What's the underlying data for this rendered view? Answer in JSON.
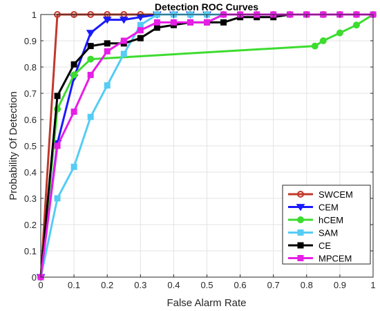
{
  "chart_data": {
    "type": "line",
    "title": "Detection ROC Curves",
    "xlabel": "False Alarm Rate",
    "ylabel": "Probability Of Detection",
    "xlim": [
      0,
      1
    ],
    "ylim": [
      0,
      1
    ],
    "xticks": [
      0,
      0.1,
      0.2,
      0.3,
      0.4,
      0.5,
      0.6,
      0.7,
      0.8,
      0.9,
      1
    ],
    "xtick_labels": [
      "0",
      "0.1",
      "0.2",
      "0.3",
      "0.4",
      "0.5",
      "0.6",
      "0.7",
      "0.8",
      "0.9",
      "1"
    ],
    "yticks": [
      0,
      0.1,
      0.2,
      0.3,
      0.4,
      0.5,
      0.6,
      0.7,
      0.8,
      0.9,
      1
    ],
    "ytick_labels": [
      "0",
      "0.1",
      "0.2",
      "0.3",
      "0.4",
      "0.5",
      "0.6",
      "0.7",
      "0.8",
      "0.9",
      "1"
    ],
    "grid": true,
    "legend_position": "bottom-right",
    "series": [
      {
        "name": "SWCEM",
        "color": "#c0392b",
        "marker": "circle-open",
        "x": [
          0,
          0.05,
          0.1,
          0.15,
          0.2,
          0.25,
          0.3,
          0.35,
          0.4,
          0.45,
          0.5,
          0.55,
          0.6,
          0.65,
          0.7,
          0.75,
          0.8,
          0.85,
          0.9,
          0.95,
          1
        ],
        "y": [
          0,
          1,
          1,
          1,
          1,
          1,
          1,
          1,
          1,
          1,
          1,
          1,
          1,
          1,
          1,
          1,
          1,
          1,
          1,
          1,
          1
        ]
      },
      {
        "name": "CEM",
        "color": "#1a1aff",
        "marker": "triangle-down",
        "x": [
          0,
          0.05,
          0.1,
          0.15,
          0.2,
          0.25,
          0.3,
          0.35,
          0.4,
          0.45,
          0.5
        ],
        "y": [
          0,
          0.51,
          0.76,
          0.93,
          0.98,
          0.98,
          0.99,
          1,
          1,
          1,
          1
        ]
      },
      {
        "name": "hCEM",
        "color": "#3ddc2f",
        "marker": "circle",
        "x": [
          0,
          0.05,
          0.1,
          0.15,
          0.825,
          0.85,
          0.9,
          0.95,
          1
        ],
        "y": [
          0,
          0.64,
          0.77,
          0.83,
          0.88,
          0.9,
          0.93,
          0.96,
          1
        ]
      },
      {
        "name": "SAM",
        "color": "#55ccf5",
        "marker": "square",
        "x": [
          0,
          0.05,
          0.1,
          0.15,
          0.2,
          0.25,
          0.3,
          0.35,
          0.4,
          0.45,
          0.5,
          0.55,
          0.6,
          0.65,
          0.7,
          0.75,
          0.8,
          0.85,
          0.9,
          0.95,
          1
        ],
        "y": [
          0,
          0.3,
          0.42,
          0.61,
          0.73,
          0.85,
          0.96,
          1,
          1,
          1,
          1,
          1,
          1,
          1,
          1,
          1,
          1,
          1,
          1,
          1,
          1
        ]
      },
      {
        "name": "CE",
        "color": "#000000",
        "marker": "square",
        "x": [
          0,
          0.05,
          0.1,
          0.15,
          0.2,
          0.25,
          0.3,
          0.35,
          0.4,
          0.45,
          0.5,
          0.55,
          0.6,
          0.65,
          0.7,
          0.75,
          0.8,
          0.85,
          0.9,
          0.95,
          1
        ],
        "y": [
          0,
          0.69,
          0.81,
          0.88,
          0.89,
          0.89,
          0.91,
          0.95,
          0.96,
          0.97,
          0.97,
          0.97,
          0.99,
          0.99,
          0.99,
          1,
          1,
          1,
          1,
          1,
          1
        ]
      },
      {
        "name": "MPCEM",
        "color": "#e61ee6",
        "marker": "square",
        "x": [
          0,
          0.05,
          0.1,
          0.15,
          0.2,
          0.25,
          0.3,
          0.35,
          0.4,
          0.45,
          0.5,
          0.55,
          0.6,
          0.65,
          0.7,
          0.75,
          0.8,
          0.85,
          0.9,
          0.95,
          1
        ],
        "y": [
          0,
          0.5,
          0.63,
          0.77,
          0.86,
          0.9,
          0.94,
          0.97,
          0.97,
          0.97,
          0.97,
          1,
          1,
          1,
          1,
          1,
          1,
          1,
          1,
          1,
          1
        ]
      }
    ]
  }
}
